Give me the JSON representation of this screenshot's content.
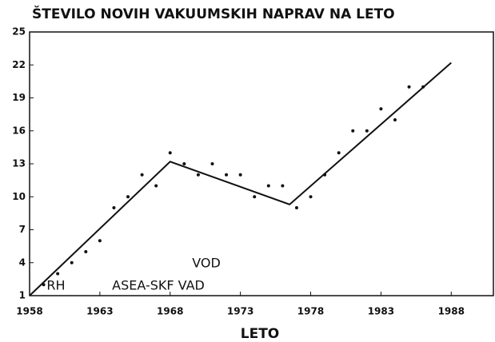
{
  "chart_data": {
    "type": "scatter",
    "title": "ŠTEVILO NOVIH VAKUUMSKIH NAPRAV NA LETO",
    "x_label": "LETO",
    "annotations": [
      "VOD",
      "RH",
      "ASEA-SKF VAD"
    ],
    "xlim": [
      1958,
      1991
    ],
    "xticks": [
      1958,
      1963,
      1968,
      1973,
      1978,
      1983,
      1988
    ],
    "ylim": [
      1,
      25
    ],
    "yticks": [
      1,
      4,
      7,
      10,
      13,
      16,
      19,
      22,
      25
    ],
    "color": "#111111",
    "series": [
      {
        "type": "scatter",
        "x": [
          1959,
          1960,
          1961,
          1962,
          1963,
          1964,
          1965,
          1966,
          1967,
          1968,
          1969,
          1970,
          1971,
          1972,
          1973,
          1974,
          1975,
          1976,
          1977,
          1978,
          1979,
          1980,
          1981,
          1982,
          1983,
          1984,
          1985,
          1986
        ],
        "values": [
          2,
          3,
          4,
          5,
          6,
          9,
          10,
          12,
          11,
          14,
          13,
          12,
          13,
          12,
          12,
          10,
          11,
          11,
          9,
          10,
          12,
          14,
          16,
          16,
          18,
          17,
          20,
          20
        ]
      },
      {
        "type": "line",
        "x": [
          1958,
          1968,
          1976.5,
          1988
        ],
        "values": [
          1,
          13.2,
          9.3,
          22.2
        ]
      }
    ]
  }
}
